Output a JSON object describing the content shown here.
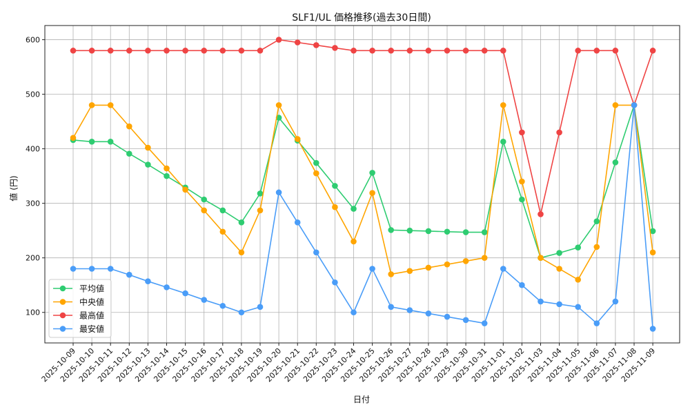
{
  "chart_data": {
    "type": "line",
    "title": "SLF1/UL 価格推移(過去30日間)",
    "xlabel": "日付",
    "ylabel": "値 (円)",
    "ylim": [
      44,
      626
    ],
    "yticks": [
      100,
      200,
      300,
      400,
      500,
      600
    ],
    "grid": true,
    "legend_position": "lower-left",
    "x": [
      "2025-10-09",
      "2025-10-10",
      "2025-10-11",
      "2025-10-12",
      "2025-10-13",
      "2025-10-14",
      "2025-10-15",
      "2025-10-16",
      "2025-10-17",
      "2025-10-18",
      "2025-10-19",
      "2025-10-20",
      "2025-10-21",
      "2025-10-22",
      "2025-10-23",
      "2025-10-24",
      "2025-10-25",
      "2025-10-26",
      "2025-10-27",
      "2025-10-28",
      "2025-10-29",
      "2025-10-30",
      "2025-10-31",
      "2025-11-01",
      "2025-11-02",
      "2025-11-03",
      "2025-11-04",
      "2025-11-05",
      "2025-11-06",
      "2025-11-07",
      "2025-11-08",
      "2025-11-09"
    ],
    "series": [
      {
        "name": "平均値",
        "color": "#2ecc71",
        "values": [
          416,
          413,
          413,
          391,
          371,
          350,
          329,
          307,
          287,
          265,
          318,
          457,
          415,
          374,
          332,
          290,
          356,
          251,
          250,
          249,
          248,
          247,
          247,
          413,
          307,
          200,
          209,
          219,
          267,
          375,
          480,
          249
        ]
      },
      {
        "name": "中央値",
        "color": "#ffa500",
        "values": [
          420,
          480,
          480,
          441,
          402,
          364,
          325,
          287,
          248,
          210,
          287,
          480,
          418,
          355,
          293,
          230,
          319,
          170,
          176,
          182,
          188,
          194,
          200,
          480,
          340,
          200,
          180,
          160,
          220,
          480,
          480,
          210
        ]
      },
      {
        "name": "最高値",
        "color": "#ef4444",
        "values": [
          580,
          580,
          580,
          580,
          580,
          580,
          580,
          580,
          580,
          580,
          580,
          600,
          595,
          590,
          585,
          580,
          580,
          580,
          580,
          580,
          580,
          580,
          580,
          580,
          430,
          280,
          430,
          580,
          580,
          580,
          480,
          580
        ]
      },
      {
        "name": "最安値",
        "color": "#4a9df8",
        "values": [
          180,
          180,
          180,
          169,
          157,
          146,
          135,
          123,
          112,
          100,
          110,
          320,
          265,
          210,
          155,
          100,
          180,
          110,
          104,
          98,
          92,
          86,
          80,
          180,
          150,
          120,
          115,
          110,
          80,
          120,
          480,
          70
        ]
      }
    ]
  }
}
